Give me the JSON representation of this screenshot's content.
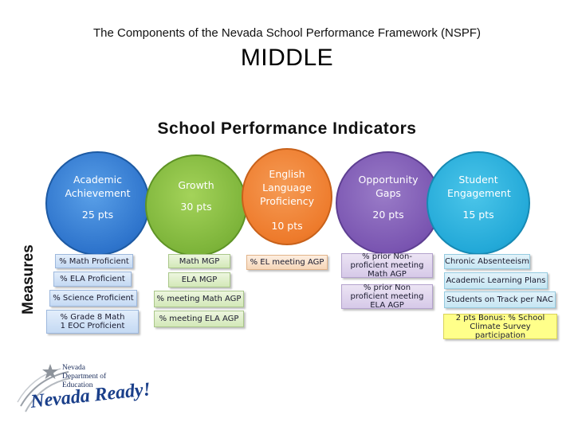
{
  "title": "The Components of the Nevada School Performance Framework (NSPF)",
  "subtitle": "MIDDLE",
  "heading": "School Performance Indicators",
  "side_label": "Measures",
  "indicators": [
    {
      "label": "Academic Achievement",
      "points": "25 pts",
      "color": "#2e74cc"
    },
    {
      "label": "Growth",
      "points": "30 pts",
      "color": "#7db43a"
    },
    {
      "label": "English Language Proficiency",
      "points": "10 pts",
      "color": "#ee7b2c"
    },
    {
      "label": "Opportunity Gaps",
      "points": "20 pts",
      "color": "#7a55b1"
    },
    {
      "label": "Student Engagement",
      "points": "15 pts",
      "color": "#23a9d8"
    }
  ],
  "measures": {
    "academic_achievement": [
      "% Math Proficient",
      "% ELA Proficient",
      "% Science Proficient",
      "% Grade 8 Math 1 EOC Proficient"
    ],
    "growth": [
      "Math MGP",
      "ELA MGP",
      "% meeting Math AGP",
      "% meeting ELA AGP"
    ],
    "english_language_proficiency": [
      "% EL meeting AGP"
    ],
    "opportunity_gaps": [
      "% prior Non-proficient meeting Math AGP",
      "% prior Non proficient meeting ELA AGP"
    ],
    "student_engagement": [
      "Chronic Absenteeism",
      "Academic Learning Plans",
      "Students on Track per NAC",
      "2 pts Bonus: % School Climate Survey participation"
    ]
  },
  "logo": {
    "dept": "Nevada Department of Education",
    "slogan": "Nevada Ready!"
  }
}
